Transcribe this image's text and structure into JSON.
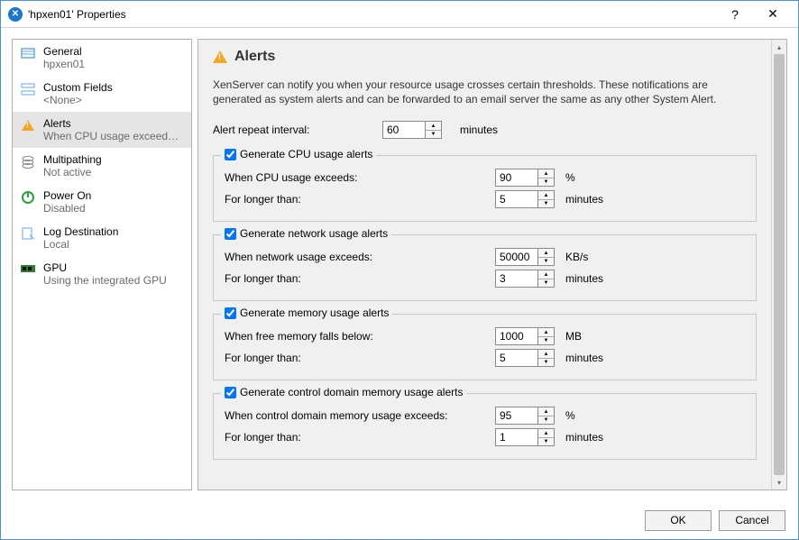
{
  "window": {
    "title": "'hpxen01' Properties"
  },
  "sidebar": {
    "items": [
      {
        "label": "General",
        "sub": "hpxen01",
        "icon": "general"
      },
      {
        "label": "Custom Fields",
        "sub": "<None>",
        "icon": "custom-fields"
      },
      {
        "label": "Alerts",
        "sub": "When CPU usage exceeds ...",
        "icon": "alerts",
        "selected": true
      },
      {
        "label": "Multipathing",
        "sub": "Not active",
        "icon": "multipathing"
      },
      {
        "label": "Power On",
        "sub": "Disabled",
        "icon": "power"
      },
      {
        "label": "Log Destination",
        "sub": "Local",
        "icon": "log"
      },
      {
        "label": "GPU",
        "sub": "Using the integrated GPU",
        "icon": "gpu"
      }
    ]
  },
  "content": {
    "title": "Alerts",
    "description": "XenServer can notify you when your resource usage crosses certain thresholds. These notifications are generated as system alerts and can be forwarded  to an email server the same as any other System Alert.",
    "repeat": {
      "label": "Alert repeat interval:",
      "value": "60",
      "unit": "minutes"
    },
    "groups": [
      {
        "legend": "Generate CPU usage alerts",
        "checked": true,
        "rows": [
          {
            "label": "When CPU usage exceeds:",
            "value": "90",
            "unit": "%"
          },
          {
            "label": "For longer than:",
            "value": "5",
            "unit": "minutes"
          }
        ]
      },
      {
        "legend": "Generate network usage alerts",
        "checked": true,
        "rows": [
          {
            "label": "When network usage exceeds:",
            "value": "50000",
            "unit": "KB/s"
          },
          {
            "label": "For longer than:",
            "value": "3",
            "unit": "minutes"
          }
        ]
      },
      {
        "legend": "Generate memory usage alerts",
        "checked": true,
        "rows": [
          {
            "label": "When free memory falls below:",
            "value": "1000",
            "unit": "MB"
          },
          {
            "label": "For longer than:",
            "value": "5",
            "unit": "minutes"
          }
        ]
      },
      {
        "legend": "Generate control domain memory usage alerts",
        "checked": true,
        "rows": [
          {
            "label": "When control domain memory usage exceeds:",
            "value": "95",
            "unit": "%"
          },
          {
            "label": "For longer than:",
            "value": "1",
            "unit": "minutes"
          }
        ]
      }
    ]
  },
  "footer": {
    "ok": "OK",
    "cancel": "Cancel"
  },
  "colors": {
    "border": "#b0b0b0",
    "panel_bg": "#f0f0f0",
    "subtext": "#6a6a6a",
    "accent": "#1976d2",
    "warning": "#f5a623"
  }
}
